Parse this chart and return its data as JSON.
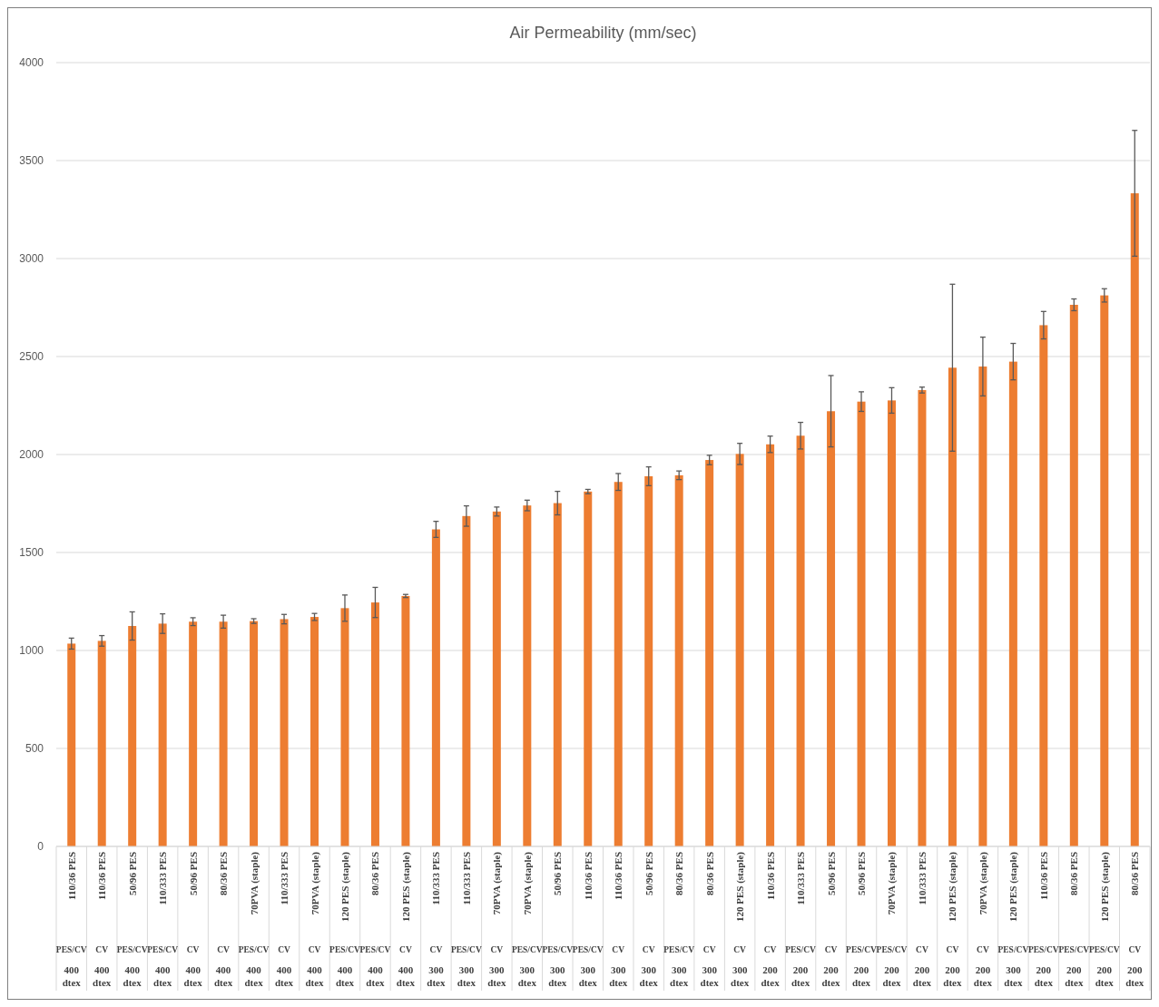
{
  "chart_data": {
    "type": "bar",
    "title": "Air Permeability (mm/sec)",
    "categories": [
      "110/36 PES\nPES/CV\n400 dtex",
      "110/36 PES\nCV\n400 dtex",
      "50/96 PES\nPES/CV\n400 dtex",
      "110/333 PES\nPES/CV\n400 dtex",
      "50/96 PES\nCV\n400 dtex",
      "80/36 PES\nCV\n400 dtex",
      "70PVA (staple)\nPES/CV\n400 dtex",
      "110/333 PES\nCV\n400 dtex",
      "70PVA (staple)\nCV\n400 dtex",
      "120 PES (staple)\nPES/CV\n400 dtex",
      "80/36 PES\nPES/CV\n400 dtex",
      "120 PES (staple)\nCV\n400 dtex",
      "110/333 PES\nCV\n300 dtex",
      "110/333 PES\nPES/CV\n300 dtex",
      "70PVA (staple)\nCV\n300 dtex",
      "70PVA (staple)\nPES/CV\n300 dtex",
      "50/96 PES\nPES/CV\n300 dtex",
      "110/36 PES\nPES/CV\n300 dtex",
      "110/36 PES\nCV\n300 dtex",
      "50/96 PES\nCV\n300 dtex",
      "80/36 PES\nPES/CV\n300 dtex",
      "80/36 PES\nCV\n300 dtex",
      "120 PES (staple)\nCV\n300 dtex",
      "110/36 PES\nCV\n200 dtex",
      "110/333 PES\nPES/CV\n200 dtex",
      "50/96 PES\nCV\n200 dtex",
      "50/96 PES\nPES/CV\n200 dtex",
      "70PVA (staple)\nPES/CV\n200 dtex",
      "110/333 PES\nCV\n200 dtex",
      "120 PES (staple)\nCV\n200 dtex",
      "70PVA (staple)\nCV\n200 dtex",
      "120 PES (staple)\nPES/CV\n300 dtex",
      "110/36 PES\nPES/CV\n200 dtex",
      "80/36 PES\nPES/CV\n200 dtex",
      "120 PES (staple)\nPES/CV\n200 dtex",
      "80/36 PES\nCV\n200 dtex"
    ],
    "values": [
      1035,
      1049,
      1125,
      1137,
      1147,
      1147,
      1150,
      1160,
      1171,
      1216,
      1245,
      1278,
      1618,
      1686,
      1709,
      1740,
      1752,
      1811,
      1860,
      1889,
      1894,
      1972,
      2003,
      2052,
      2096,
      2221,
      2270,
      2276,
      2329,
      2443,
      2449,
      2474,
      2660,
      2764,
      2812,
      3333
    ],
    "errors": [
      28,
      27,
      72,
      50,
      20,
      33,
      12,
      24,
      18,
      67,
      77,
      8,
      41,
      52,
      23,
      27,
      60,
      11,
      43,
      48,
      22,
      24,
      54,
      42,
      68,
      182,
      50,
      65,
      15,
      426,
      150,
      93,
      70,
      30,
      34,
      321
    ],
    "color": "#ed7d31",
    "ylim": [
      0,
      4000
    ],
    "yticks": [
      0,
      500,
      1000,
      1500,
      2000,
      2500,
      3000,
      3500,
      4000
    ],
    "grid": "y"
  }
}
